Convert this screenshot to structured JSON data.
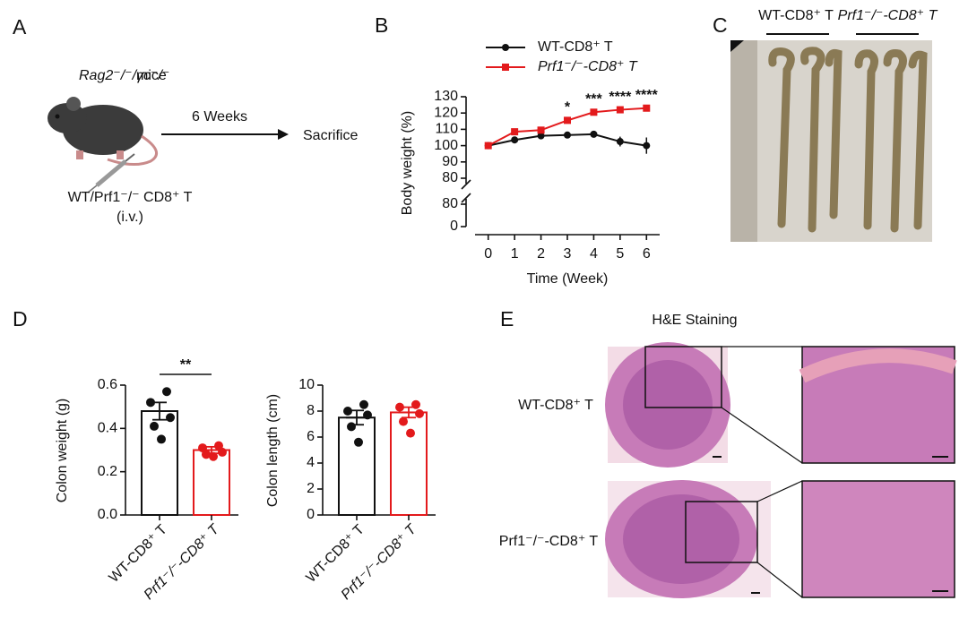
{
  "panel_labels": [
    "A",
    "B",
    "C",
    "D",
    "E"
  ],
  "panel_a": {
    "strain": "Rag2⁻/⁻/γc⁻/⁻",
    "mice": "mice",
    "duration": "6 Weeks",
    "outcome": "Sacrifice",
    "cells": "WT/Prf1⁻/⁻ CD8⁺ T",
    "route": "(i.v.)"
  },
  "chart_data": [
    {
      "type": "line",
      "xlabel": "Time (Week)",
      "ylabel": "Body weight (%)",
      "x": [
        0,
        1,
        2,
        3,
        4,
        5,
        6
      ],
      "xlim": [
        -0.5,
        6.5
      ],
      "xticks": [
        0,
        1,
        2,
        3,
        4,
        5,
        6
      ],
      "ylim": [
        80,
        130
      ],
      "yticks": [
        80,
        90,
        100,
        110,
        120,
        130
      ],
      "ylim_lower": [
        0,
        80
      ],
      "yticks_lower": [
        0,
        80
      ],
      "axis_break": true,
      "series": [
        {
          "name": "WT-CD8⁺ T",
          "color": "#111111",
          "values": [
            100,
            103.5,
            106,
            106.5,
            107,
            102.5,
            100
          ],
          "errors": [
            0,
            1,
            1,
            1,
            1,
            3,
            5
          ]
        },
        {
          "name": "Prf1⁻/⁻-CD8⁺ T",
          "color": "#e31a1c",
          "values": [
            100,
            108.5,
            109.5,
            115.5,
            120.5,
            122,
            123
          ],
          "errors": [
            0,
            1,
            1,
            1,
            1,
            1,
            1
          ]
        }
      ],
      "annotations": [
        {
          "x": 3,
          "text": "*"
        },
        {
          "x": 4,
          "text": "***"
        },
        {
          "x": 5,
          "text": "****"
        },
        {
          "x": 6,
          "text": "****"
        }
      ]
    },
    {
      "type": "bar",
      "ylabel": "Colon weight (g)",
      "categories": [
        "WT-CD8⁺ T",
        "Prf1⁻/⁻-CD8⁺ T"
      ],
      "colors": [
        "#111111",
        "#e31a1c"
      ],
      "values": [
        0.48,
        0.3
      ],
      "errors": [
        0.04,
        0.015
      ],
      "points": [
        [
          0.57,
          0.52,
          0.45,
          0.41,
          0.35
        ],
        [
          0.32,
          0.31,
          0.29,
          0.28,
          0.27
        ]
      ],
      "ylim": [
        0,
        0.6
      ],
      "yticks": [
        {
          "value": 0,
          "label": "0.0"
        },
        0.2,
        0.4,
        0.6
      ],
      "significance": "**"
    },
    {
      "type": "bar",
      "ylabel": "Colon length (cm)",
      "categories": [
        "WT-CD8⁺ T",
        "Prf1⁻/⁻-CD8⁺ T"
      ],
      "colors": [
        "#111111",
        "#e31a1c"
      ],
      "values": [
        7.5,
        7.9
      ],
      "errors": [
        0.55,
        0.4
      ],
      "points": [
        [
          8.5,
          8.0,
          7.7,
          6.8,
          5.6
        ],
        [
          8.5,
          8.3,
          7.8,
          7.2,
          6.3
        ]
      ],
      "ylim": [
        0,
        10
      ],
      "yticks": [
        0,
        2,
        4,
        6,
        8,
        10
      ]
    }
  ],
  "panel_c": {
    "labels": [
      "WT-CD8⁺ T",
      "Prf1⁻/⁻-CD8⁺ T"
    ]
  },
  "panel_e": {
    "title": "H&E Staining",
    "rows": [
      "WT-CD8⁺ T",
      "Prf1⁻/⁻-CD8⁺ T"
    ]
  }
}
